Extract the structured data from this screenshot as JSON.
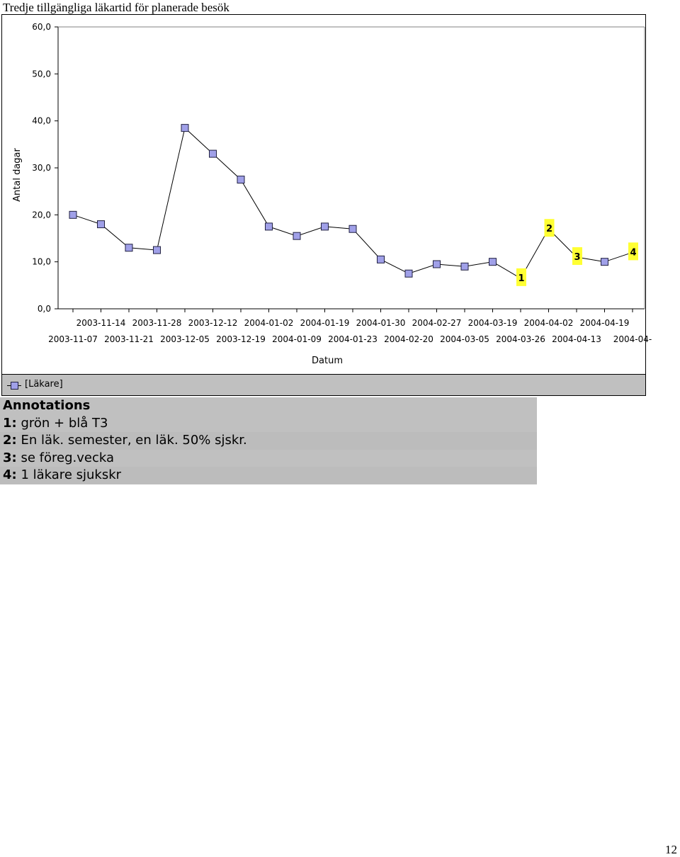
{
  "page_title": "Tredje tillgängliga läkartid för planerade besök",
  "page_number": "12",
  "legend": {
    "label": "[Läkare]"
  },
  "annotations": {
    "heading": "Annotations",
    "items": [
      {
        "num": "1:",
        "text": "grön + blå T3"
      },
      {
        "num": "2:",
        "text": "En läk. semester, en läk. 50% sjskr."
      },
      {
        "num": "3:",
        "text": "se föreg.vecka"
      },
      {
        "num": "4:",
        "text": "1 läkare sjukskr"
      }
    ]
  },
  "colors": {
    "marker_fill": "#a0a0e8",
    "marker_stroke": "#202040",
    "line": "#000000",
    "annotation_highlight": "#ffff33",
    "legend_bg": "#c0c0c0"
  },
  "chart_data": {
    "type": "line",
    "xlabel": "Datum",
    "ylabel": "Antal dagar",
    "ylim": [
      0,
      60
    ],
    "yticks": [
      "0,0",
      "10,0",
      "20,0",
      "30,0",
      "40,0",
      "50,0",
      "60,0"
    ],
    "ytick_values": [
      0,
      10,
      20,
      30,
      40,
      50,
      60
    ],
    "categories": [
      "2003-11-07",
      "2003-11-14",
      "2003-11-21",
      "2003-11-28",
      "2003-12-05",
      "2003-12-12",
      "2003-12-19",
      "2004-01-02",
      "2004-01-09",
      "2004-01-19",
      "2004-01-23",
      "2004-01-30",
      "2004-02-20",
      "2004-02-27",
      "2004-03-05",
      "2004-03-19",
      "2004-03-26",
      "2004-04-02",
      "2004-04-13",
      "2004-04-19",
      "2004-04-"
    ],
    "series": [
      {
        "name": "[Läkare]",
        "values": [
          20.0,
          18.0,
          13.0,
          12.5,
          38.5,
          33.0,
          27.5,
          17.5,
          15.5,
          17.5,
          17.0,
          10.5,
          7.5,
          9.5,
          9.0,
          10.0,
          6.5,
          17.0,
          11.0,
          10.0,
          12.0
        ],
        "markers": [
          true,
          true,
          true,
          true,
          true,
          true,
          true,
          true,
          true,
          true,
          true,
          true,
          true,
          true,
          true,
          true,
          false,
          false,
          false,
          true,
          false
        ]
      }
    ],
    "point_annotations": [
      {
        "label": "1",
        "index": 16
      },
      {
        "label": "2",
        "index": 17
      },
      {
        "label": "3",
        "index": 18
      },
      {
        "label": "4",
        "index": 20
      }
    ],
    "grid": false,
    "legend_position": "bottom-left"
  }
}
